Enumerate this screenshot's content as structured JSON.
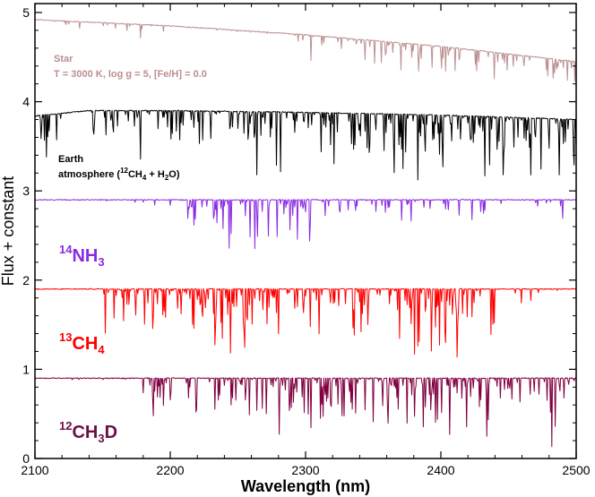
{
  "chart_data": {
    "type": "line",
    "title": "",
    "xlabel": "Wavelength (nm)",
    "ylabel": "Flux + constant",
    "xlim": [
      2100,
      2500
    ],
    "ylim": [
      0,
      5.1
    ],
    "x_ticks": [
      2100,
      2200,
      2300,
      2400,
      2500
    ],
    "x_tick_labels": [
      "2100",
      "2200",
      "2300",
      "2400",
      "2500"
    ],
    "y_ticks": [
      0,
      1,
      2,
      3,
      4,
      5
    ],
    "y_tick_labels": [
      "0",
      "1",
      "2",
      "3",
      "4",
      "5"
    ],
    "grid": false,
    "legend": "none",
    "series": [
      {
        "name": "Star",
        "color": "#bc8f8f",
        "offset": 4.0,
        "continuum": [
          [
            2100,
            4.92
          ],
          [
            2200,
            4.85
          ],
          [
            2300,
            4.75
          ],
          [
            2400,
            4.62
          ],
          [
            2500,
            4.45
          ]
        ],
        "band_regions": [
          {
            "start": 2100,
            "end": 2200,
            "depth": 0.18
          },
          {
            "start": 2293,
            "end": 2500,
            "depth": 0.5
          }
        ],
        "min_flux_approx": 4.2,
        "labels": [
          "Star",
          "T = 3000 K, log g = 5, [Fe/H] = 0.0"
        ]
      },
      {
        "name": "Earth atmosphere (12CH4 + H2O)",
        "color": "#000000",
        "offset": 3.0,
        "continuum": [
          [
            2100,
            3.84
          ],
          [
            2140,
            3.9
          ],
          [
            2200,
            3.9
          ],
          [
            2300,
            3.88
          ],
          [
            2400,
            3.85
          ],
          [
            2500,
            3.8
          ]
        ],
        "band_regions": [
          {
            "start": 2100,
            "end": 2120,
            "depth": 0.5
          },
          {
            "start": 2140,
            "end": 2250,
            "depth": 0.6
          },
          {
            "start": 2250,
            "end": 2330,
            "depth": 0.85
          },
          {
            "start": 2330,
            "end": 2500,
            "depth": 0.9
          }
        ],
        "min_flux_approx": 3.0
      },
      {
        "name": "14NH3",
        "color": "#8a2be2",
        "offset": 2.0,
        "continuum": [
          [
            2100,
            2.9
          ],
          [
            2500,
            2.9
          ]
        ],
        "band_regions": [
          {
            "start": 2160,
            "end": 2330,
            "depth": 0.85,
            "peak": 2260
          },
          {
            "start": 2330,
            "end": 2500,
            "depth": 0.3
          }
        ],
        "min_flux_approx": 2.05
      },
      {
        "name": "13CH4",
        "color": "#ff0000",
        "offset": 1.0,
        "continuum": [
          [
            2100,
            1.9
          ],
          [
            2500,
            1.9
          ]
        ],
        "band_regions": [
          {
            "start": 2150,
            "end": 2325,
            "depth": 0.8
          },
          {
            "start": 2325,
            "end": 2440,
            "depth": 0.85
          },
          {
            "start": 2440,
            "end": 2480,
            "depth": 0.2
          }
        ],
        "min_flux_approx": 1.0
      },
      {
        "name": "12CH3D",
        "color": "#800040",
        "offset": 0.0,
        "continuum": [
          [
            2100,
            0.9
          ],
          [
            2500,
            0.9
          ]
        ],
        "band_regions": [
          {
            "start": 2180,
            "end": 2260,
            "depth": 0.5
          },
          {
            "start": 2260,
            "end": 2500,
            "depth": 0.8
          }
        ],
        "min_flux_approx": 0.05
      }
    ],
    "annotations": {
      "star_title": "Star",
      "star_params": "T = 3000 K, log g = 5, [Fe/H] = 0.0",
      "earth_line1": "Earth",
      "earth_line2_prefix": "atmosphere  (",
      "earth_sup_12": "12",
      "earth_ch": "CH",
      "earth_sub_4": "4",
      "earth_plus_h": " + H",
      "earth_sub_2": "2",
      "earth_o_close": "O)",
      "nh3_sup": "14",
      "nh3_base": "NH",
      "nh3_sub": "3",
      "ch4_sup": "13",
      "ch4_base": "CH",
      "ch4_sub": "4",
      "ch3d_sup": "12",
      "ch3d_ch": "CH",
      "ch3d_sub": "3",
      "ch3d_d": "D"
    }
  }
}
